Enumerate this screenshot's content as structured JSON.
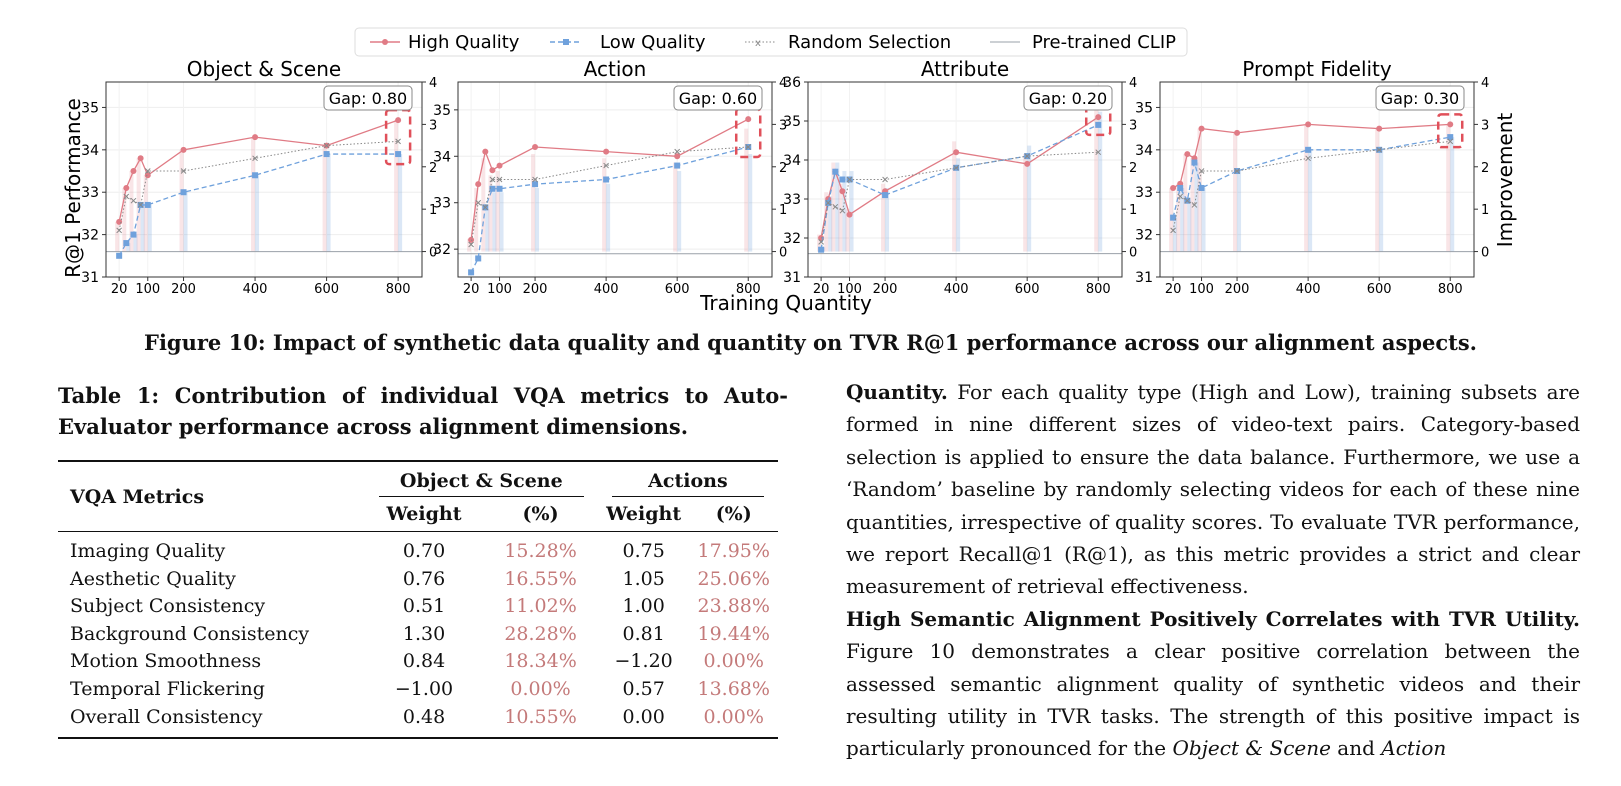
{
  "figure": {
    "legend": [
      "High Quality",
      "Low Quality",
      "Random Selection",
      "Pre-trained CLIP"
    ],
    "xlabel": "Training Quantity",
    "ylabel_left": "R@1 Performance",
    "ylabel_right": "Improvement",
    "caption": "Figure 10: Impact of synthetic data quality and quantity on TVR R@1 performance across our alignment aspects."
  },
  "chart_data": [
    {
      "type": "line",
      "title": "Object & Scene",
      "annotation": "Gap: 0.80",
      "x": [
        20,
        40,
        60,
        80,
        100,
        200,
        400,
        600,
        800
      ],
      "xticks": [
        20,
        100,
        200,
        400,
        600,
        800
      ],
      "ylim": [
        31,
        35.6
      ],
      "yticks": [
        31,
        32,
        33,
        34,
        35
      ],
      "ylim_right": [
        -0.6,
        4
      ],
      "yticks_right": [
        0,
        1,
        2,
        3,
        4
      ],
      "baseline": 31.6,
      "series": [
        {
          "name": "High Quality",
          "values": [
            32.3,
            33.1,
            33.5,
            33.8,
            33.4,
            34.0,
            34.3,
            34.1,
            34.7
          ]
        },
        {
          "name": "Low Quality",
          "values": [
            31.5,
            31.8,
            32.0,
            32.7,
            32.7,
            33.0,
            33.4,
            33.9,
            33.9
          ]
        },
        {
          "name": "Random Selection",
          "values": [
            32.1,
            32.9,
            32.8,
            32.7,
            33.5,
            33.5,
            33.8,
            34.1,
            34.2
          ]
        }
      ]
    },
    {
      "type": "line",
      "title": "Action",
      "annotation": "Gap: 0.60",
      "x": [
        20,
        40,
        60,
        80,
        100,
        200,
        400,
        600,
        800
      ],
      "xticks": [
        20,
        100,
        200,
        400,
        600,
        800
      ],
      "ylim": [
        31.4,
        35.6
      ],
      "yticks": [
        32,
        33,
        34,
        35
      ],
      "ylim_right": [
        -0.6,
        4
      ],
      "yticks_right": [
        0,
        1,
        2,
        3,
        4
      ],
      "baseline": 31.9,
      "series": [
        {
          "name": "High Quality",
          "values": [
            32.2,
            33.4,
            34.1,
            33.7,
            33.8,
            34.2,
            34.1,
            34.0,
            34.8
          ]
        },
        {
          "name": "Low Quality",
          "values": [
            31.5,
            31.8,
            32.9,
            33.3,
            33.3,
            33.4,
            33.5,
            33.8,
            34.2
          ]
        },
        {
          "name": "Random Selection",
          "values": [
            32.1,
            33.0,
            32.9,
            33.5,
            33.5,
            33.5,
            33.8,
            34.1,
            34.2
          ]
        }
      ]
    },
    {
      "type": "line",
      "title": "Attribute",
      "annotation": "Gap: 0.20",
      "x": [
        20,
        40,
        60,
        80,
        100,
        200,
        400,
        600,
        800
      ],
      "xticks": [
        20,
        100,
        200,
        400,
        600,
        800
      ],
      "ylim": [
        31,
        36
      ],
      "yticks": [
        31,
        32,
        33,
        34,
        35,
        36
      ],
      "ylim_right": [
        -0.6,
        4
      ],
      "yticks_right": [
        0,
        1,
        2,
        3,
        4
      ],
      "baseline": 31.6,
      "series": [
        {
          "name": "High Quality",
          "values": [
            32.0,
            33.0,
            33.7,
            33.2,
            32.6,
            33.2,
            34.2,
            33.9,
            35.1
          ]
        },
        {
          "name": "Low Quality",
          "values": [
            31.7,
            32.9,
            33.7,
            33.5,
            33.5,
            33.1,
            33.8,
            34.1,
            34.9
          ]
        },
        {
          "name": "Random Selection",
          "values": [
            31.9,
            32.9,
            32.8,
            32.7,
            33.5,
            33.5,
            33.8,
            34.1,
            34.2
          ]
        }
      ]
    },
    {
      "type": "line",
      "title": "Prompt Fidelity",
      "annotation": "Gap: 0.30",
      "x": [
        20,
        40,
        60,
        80,
        100,
        200,
        400,
        600,
        800
      ],
      "xticks": [
        20,
        100,
        200,
        400,
        600,
        800
      ],
      "ylim": [
        31,
        35.6
      ],
      "yticks": [
        31,
        32,
        33,
        34,
        35
      ],
      "ylim_right": [
        -0.6,
        4
      ],
      "yticks_right": [
        0,
        1,
        2,
        3,
        4
      ],
      "baseline": 31.6,
      "series": [
        {
          "name": "High Quality",
          "values": [
            33.1,
            33.2,
            33.9,
            33.8,
            34.5,
            34.4,
            34.6,
            34.5,
            34.6
          ]
        },
        {
          "name": "Low Quality",
          "values": [
            32.4,
            33.1,
            32.8,
            33.7,
            33.1,
            33.5,
            34.0,
            34.0,
            34.3
          ]
        },
        {
          "name": "Random Selection",
          "values": [
            32.1,
            32.9,
            32.8,
            32.7,
            33.5,
            33.5,
            33.8,
            34.0,
            34.2
          ]
        }
      ]
    }
  ],
  "table": {
    "caption": "Table 1: Contribution of individual VQA metrics to Auto-Evaluator performance across alignment dimensions.",
    "head": {
      "metric": "VQA Metrics",
      "group1": "Object & Scene",
      "group2": "Actions",
      "weight": "Weight",
      "pct": "(%)"
    },
    "rows": [
      {
        "metric": "Imaging Quality",
        "w1": "0.70",
        "p1": "15.28%",
        "w2": "0.75",
        "p2": "17.95%"
      },
      {
        "metric": "Aesthetic Quality",
        "w1": "0.76",
        "p1": "16.55%",
        "w2": "1.05",
        "p2": "25.06%"
      },
      {
        "metric": "Subject Consistency",
        "w1": "0.51",
        "p1": "11.02%",
        "w2": "1.00",
        "p2": "23.88%"
      },
      {
        "metric": "Background Consistency",
        "w1": "1.30",
        "p1": "28.28%",
        "w2": "0.81",
        "p2": "19.44%"
      },
      {
        "metric": "Motion Smoothness",
        "w1": "0.84",
        "p1": "18.34%",
        "w2": "−1.20",
        "p2": "0.00%"
      },
      {
        "metric": "Temporal Flickering",
        "w1": "−1.00",
        "p1": "0.00%",
        "w2": "0.57",
        "p2": "13.68%"
      },
      {
        "metric": "Overall Consistency",
        "w1": "0.48",
        "p1": "10.55%",
        "w2": "0.00",
        "p2": "0.00%"
      }
    ]
  },
  "text": {
    "p1_head": "Quantity.",
    "p1_body": " For each quality type (High and Low), training subsets are formed in nine different sizes of video-text pairs. Category-based selection is applied to ensure the data balance. Furthermore, we use a ‘Random’ baseline by randomly selecting videos for each of these nine quantities, irrespective of quality scores. To evaluate TVR performance, we report Recall@1 (R@1), as this metric provides a strict and clear measurement of retrieval effectiveness.",
    "p2_head": "High Semantic Alignment Positively Correlates with TVR Utility.",
    "p2_body1": " Figure 10 demonstrates a clear positive correlation between the assessed semantic alignment quality of synthetic videos and their resulting utility in TVR tasks. The strength of this positive impact is particularly pronounced for the ",
    "p2_em1": "Object & Scene",
    "p2_mid": " and ",
    "p2_em2": "Action"
  },
  "colors": {
    "high": "#e07b85",
    "low": "#6fa1dc",
    "random": "#888888",
    "clip": "#9aa0a8",
    "pct": "#c47a7a"
  }
}
